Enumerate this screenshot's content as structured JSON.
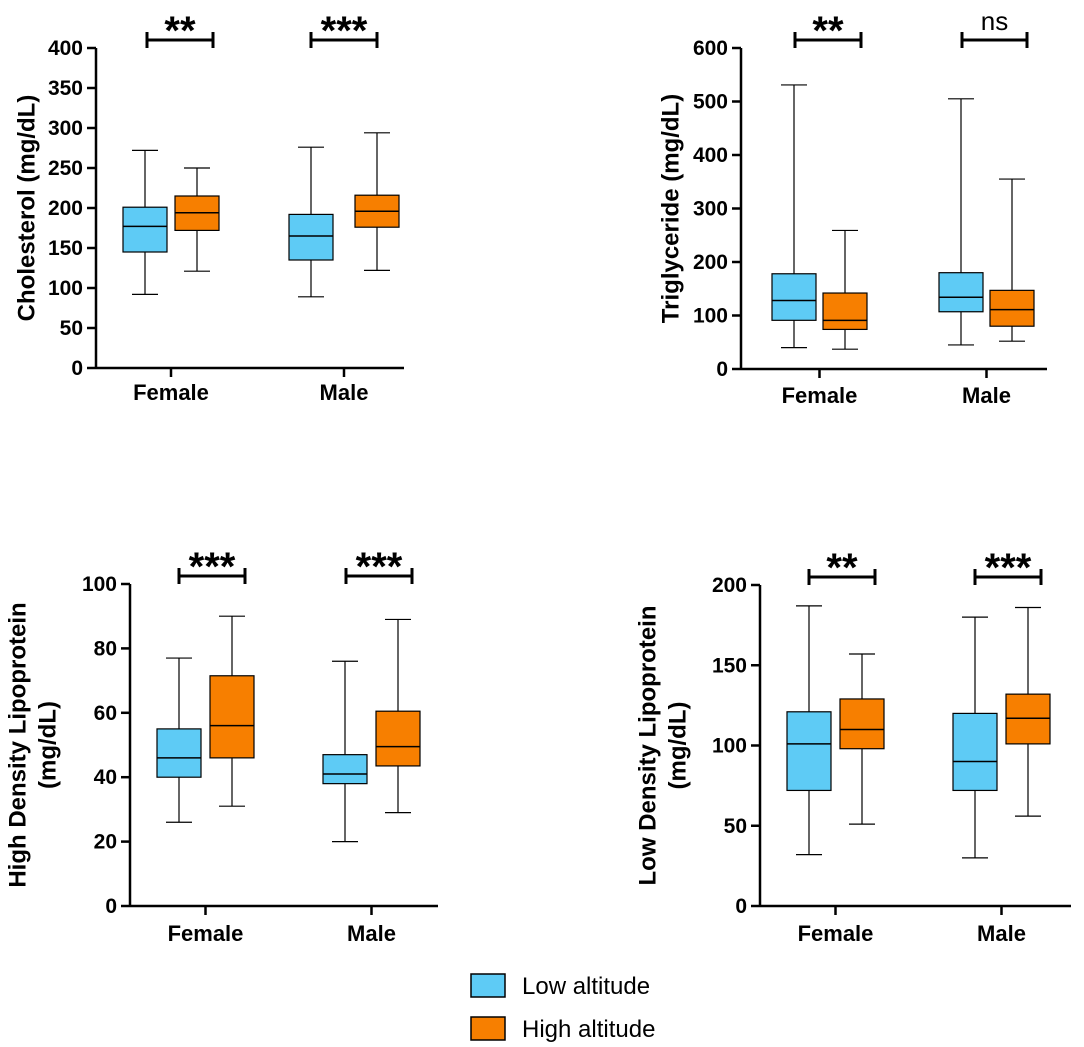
{
  "legend": {
    "items": [
      {
        "label": "Low altitude",
        "color": "#5ecbf5"
      },
      {
        "label": "High altitude",
        "color": "#f77f00"
      }
    ]
  },
  "chart_data": [
    {
      "type": "box",
      "ylabel": [
        "Cholesterol (mg/dL)"
      ],
      "ylim": [
        0,
        400
      ],
      "yticks": [
        0,
        50,
        100,
        150,
        200,
        250,
        300,
        350,
        400
      ],
      "categories": [
        "Female",
        "Male"
      ],
      "series": [
        {
          "name": "Low altitude",
          "boxes": [
            {
              "min": 92,
              "q1": 145,
              "median": 177,
              "q3": 201,
              "max": 272
            },
            {
              "min": 89,
              "q1": 135,
              "median": 165,
              "q3": 192,
              "max": 276
            }
          ]
        },
        {
          "name": "High altitude",
          "boxes": [
            {
              "min": 121,
              "q1": 172,
              "median": 194,
              "q3": 215,
              "max": 250
            },
            {
              "min": 122,
              "q1": 176,
              "median": 196,
              "q3": 216,
              "max": 294
            }
          ]
        }
      ],
      "significance": [
        "**",
        "***"
      ]
    },
    {
      "type": "box",
      "ylabel": [
        "Triglyceride (mg/dL)"
      ],
      "ylim": [
        0,
        600
      ],
      "yticks": [
        0,
        100,
        200,
        300,
        400,
        500,
        600
      ],
      "categories": [
        "Female",
        "Male"
      ],
      "series": [
        {
          "name": "Low altitude",
          "boxes": [
            {
              "min": 40,
              "q1": 91,
              "median": 128,
              "q3": 178,
              "max": 531
            },
            {
              "min": 45,
              "q1": 107,
              "median": 134,
              "q3": 180,
              "max": 505
            }
          ]
        },
        {
          "name": "High altitude",
          "boxes": [
            {
              "min": 37,
              "q1": 74,
              "median": 91,
              "q3": 142,
              "max": 259
            },
            {
              "min": 52,
              "q1": 80,
              "median": 111,
              "q3": 147,
              "max": 355
            }
          ]
        }
      ],
      "significance": [
        "**",
        "ns"
      ]
    },
    {
      "type": "box",
      "ylabel": [
        "High Density Lipoprotein",
        "(mg/dL)"
      ],
      "ylim": [
        0,
        100
      ],
      "yticks": [
        0,
        20,
        40,
        60,
        80,
        100
      ],
      "categories": [
        "Female",
        "Male"
      ],
      "series": [
        {
          "name": "Low altitude",
          "boxes": [
            {
              "min": 26,
              "q1": 40,
              "median": 46,
              "q3": 55,
              "max": 77
            },
            {
              "min": 20,
              "q1": 38,
              "median": 41,
              "q3": 47,
              "max": 76
            }
          ]
        },
        {
          "name": "High altitude",
          "boxes": [
            {
              "min": 31,
              "q1": 46,
              "median": 56,
              "q3": 71.5,
              "max": 90
            },
            {
              "min": 29,
              "q1": 43.5,
              "median": 49.5,
              "q3": 60.5,
              "max": 89
            }
          ]
        }
      ],
      "significance": [
        "***",
        "***"
      ]
    },
    {
      "type": "box",
      "ylabel": [
        "Low Density Lipoprotein",
        "(mg/dL)"
      ],
      "ylim": [
        0,
        200
      ],
      "yticks": [
        0,
        50,
        100,
        150,
        200
      ],
      "categories": [
        "Female",
        "Male"
      ],
      "series": [
        {
          "name": "Low altitude",
          "boxes": [
            {
              "min": 32,
              "q1": 72,
              "median": 101,
              "q3": 121,
              "max": 187
            },
            {
              "min": 30,
              "q1": 72,
              "median": 90,
              "q3": 120,
              "max": 180
            }
          ]
        },
        {
          "name": "High altitude",
          "boxes": [
            {
              "min": 51,
              "q1": 98,
              "median": 110,
              "q3": 129,
              "max": 157
            },
            {
              "min": 56,
              "q1": 101,
              "median": 117,
              "q3": 132,
              "max": 186
            }
          ]
        }
      ],
      "significance": [
        "**",
        "***"
      ]
    }
  ]
}
